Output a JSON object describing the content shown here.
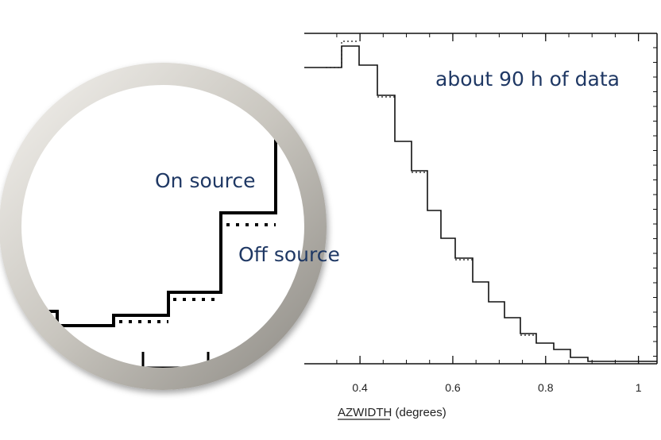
{
  "chart_data": {
    "type": "histogram",
    "xlabel": "AZWIDTH (degrees)",
    "xlim": [
      0.28,
      1.04
    ],
    "xticks": [
      0.4,
      0.6,
      0.8,
      1
    ],
    "annotations": [
      "about 90 h of data",
      "On source",
      "Off source"
    ]
  }
}
